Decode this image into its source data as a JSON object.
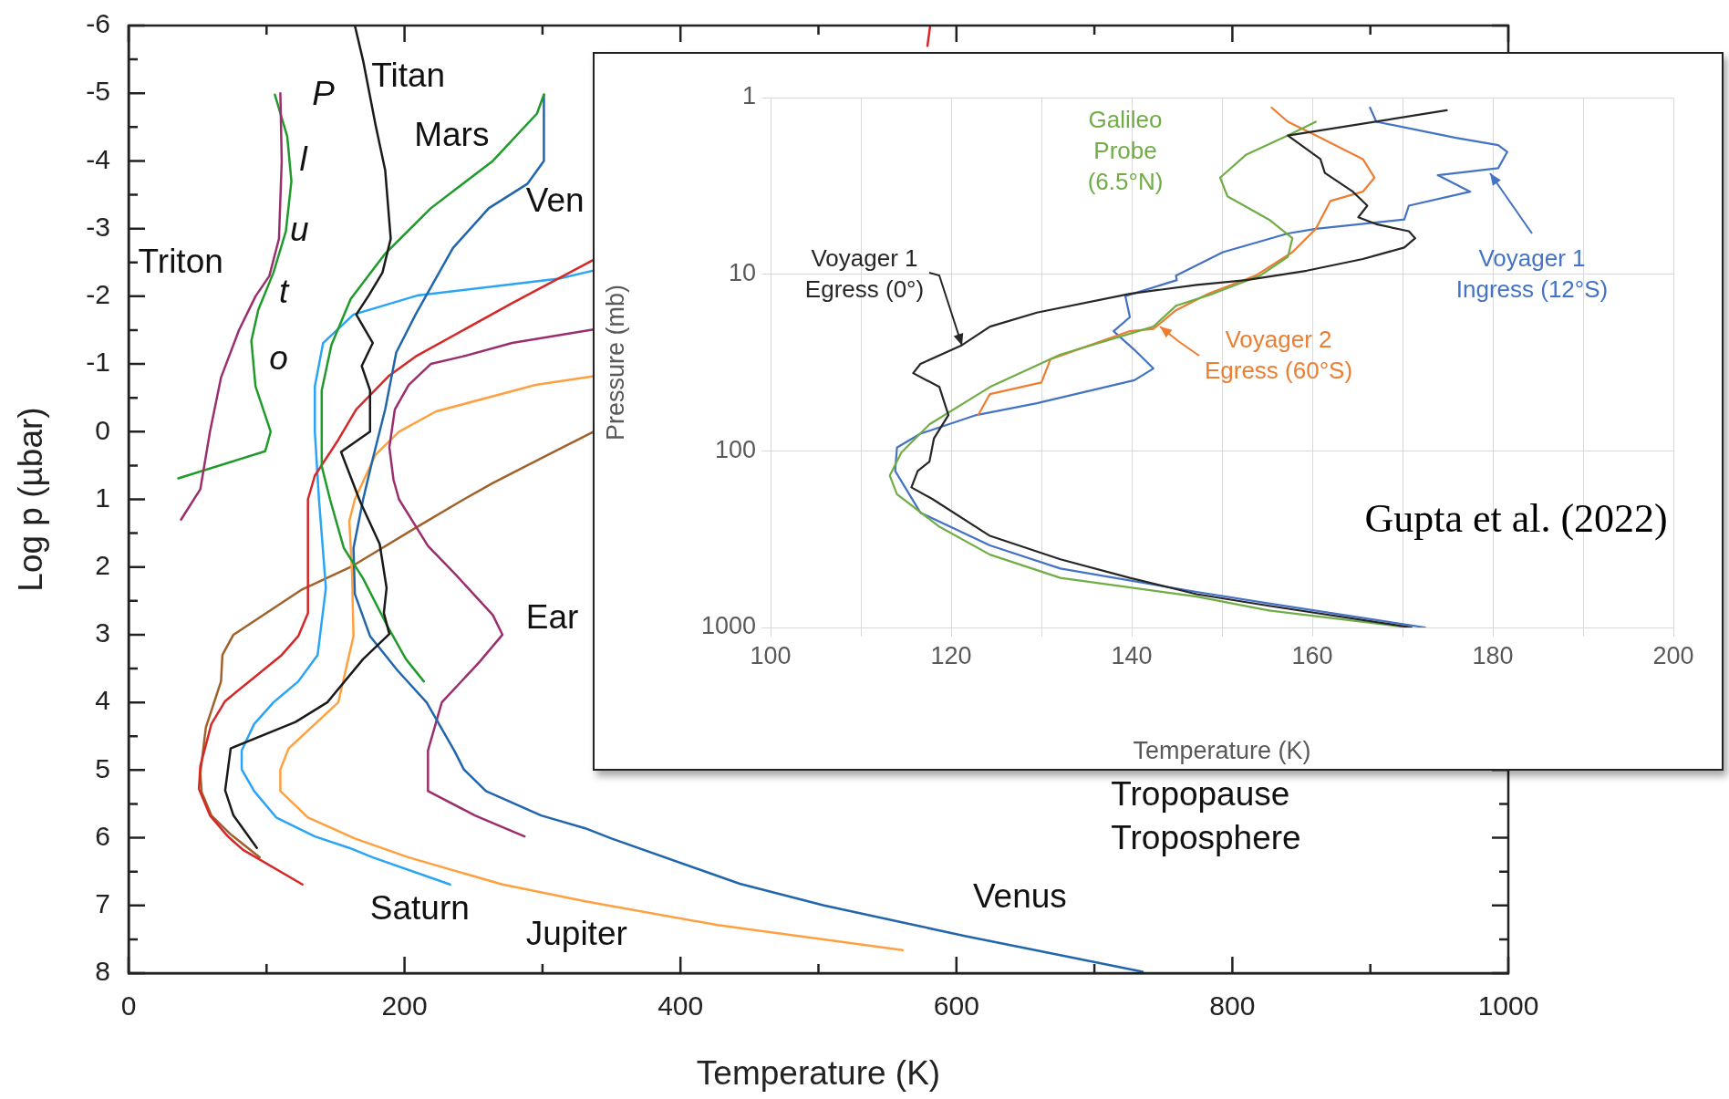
{
  "chart_data": [
    {
      "type": "line",
      "xlabel": "Temperature (K)",
      "ylabel": "Log p (µbar)",
      "xlim": [
        0,
        1000
      ],
      "ylim": [
        8,
        -6
      ],
      "xticks": [
        0,
        {
          "value": 100,
          "label": null
        },
        200,
        {
          "value": 300,
          "label": null
        },
        400,
        {
          "value": 500,
          "label": null
        },
        600,
        {
          "value": 700,
          "label": null
        },
        800,
        {
          "value": 900,
          "label": null
        },
        1000
      ],
      "yticks": [
        -6,
        {
          "value": -5.5,
          "label": null
        },
        -5,
        {
          "value": -4.5,
          "label": null
        },
        -4,
        {
          "value": -3.5,
          "label": null
        },
        -3,
        {
          "value": -2.5,
          "label": null
        },
        -2,
        {
          "value": -1.5,
          "label": null
        },
        -1,
        {
          "value": -0.5,
          "label": null
        },
        0,
        {
          "value": 0.5,
          "label": null
        },
        1,
        {
          "value": 1.5,
          "label": null
        },
        2,
        {
          "value": 2.5,
          "label": null
        },
        3,
        {
          "value": 3.5,
          "label": null
        },
        4,
        {
          "value": 4.5,
          "label": null
        },
        5,
        {
          "value": 5.5,
          "label": null
        },
        6,
        {
          "value": 6.5,
          "label": null
        },
        7,
        {
          "value": 7.5,
          "label": null
        },
        8
      ],
      "grid": false,
      "marker": "none",
      "line_style": "solid",
      "annotations": [
        "Titan",
        "Mars",
        "Ven",
        "Triton",
        "P",
        "l",
        "u",
        "t",
        "o",
        "Ear",
        "Saturn",
        "Jupiter",
        "Venus",
        "Tropopause",
        "Troposphere"
      ],
      "series": [
        {
          "color": "#9b2f6e",
          "x": [
            110,
            111,
            109,
            102,
            92,
            80,
            67,
            59,
            52,
            38
          ],
          "values": [
            -5,
            -4,
            -2.85,
            -2.3,
            -2,
            -1.5,
            -0.8,
            0,
            0.85,
            1.3
          ]
        },
        {
          "color": "#1f9a2b",
          "x": [
            106,
            115,
            118,
            114,
            105,
            94,
            89,
            92,
            103,
            99,
            36
          ],
          "values": [
            -4.98,
            -4.36,
            -3.7,
            -2.96,
            -2.35,
            -1.8,
            -1.34,
            -0.67,
            0,
            0.29,
            0.69
          ]
        },
        {
          "color": "#1a1a1a",
          "x": [
            164,
            170,
            179,
            186,
            190,
            184,
            174,
            165,
            177,
            169,
            175,
            175,
            154,
            168,
            182,
            187,
            185,
            189,
            170,
            144,
            121,
            74,
            70,
            76,
            93
          ],
          "values": [
            -6,
            -5.48,
            -4.53,
            -3.86,
            -2.85,
            -2.35,
            -2.01,
            -1.73,
            -1.31,
            -0.97,
            -0.61,
            0,
            0.3,
            1.04,
            1.66,
            2.31,
            2.68,
            2.99,
            3.36,
            4,
            4.29,
            4.68,
            5.3,
            5.67,
            6.15
          ]
        },
        {
          "color": "#1f9a2b",
          "x": [
            301,
            296,
            264,
            219,
            186,
            161,
            147,
            140,
            140,
            146,
            156,
            170,
            187,
            201,
            214
          ],
          "values": [
            -4.98,
            -4.7,
            -4,
            -3.3,
            -2.63,
            -1.96,
            -1.28,
            -0.61,
            0.51,
            1,
            1.72,
            2.17,
            2.85,
            3.36,
            3.69
          ]
        },
        {
          "color": "#2166ac",
          "x": [
            301,
            301,
            289,
            261,
            235,
            222,
            208,
            194,
            186,
            177,
            170,
            163,
            164,
            175,
            195,
            216,
            236,
            243,
            259,
            299,
            331,
            350,
            443,
            504,
            606,
            662,
            735
          ],
          "values": [
            -4.98,
            -4,
            -3.66,
            -3.3,
            -2.71,
            -2.24,
            -1.73,
            -1.17,
            -0.33,
            0.4,
            1,
            1.72,
            2.4,
            3.02,
            3.53,
            4,
            4.71,
            4.99,
            5.31,
            5.67,
            5.86,
            6.01,
            6.68,
            7,
            7.45,
            7.68,
            7.98
          ]
        },
        {
          "color": "#9b2f6e",
          "x": [
            337,
            278,
            242,
            219,
            203,
            193,
            189,
            192,
            196,
            217,
            237,
            264,
            271,
            254,
            227,
            217,
            217,
            251,
            287
          ],
          "values": [
            -1.51,
            -1.31,
            -1.11,
            -1,
            -0.69,
            -0.33,
            0.23,
            0.71,
            1,
            1.69,
            2.11,
            2.71,
            3,
            3.41,
            4,
            4.71,
            5.31,
            5.67,
            5.98
          ]
        },
        {
          "color": "#d62728",
          "x": [
            581,
            579,
            450,
            337,
            278,
            208,
            189,
            165,
            152,
            135,
            130,
            130,
            123,
            111,
            70,
            60,
            52,
            51,
            59,
            72,
            83,
            126
          ],
          "values": [
            -6,
            -5.7,
            null,
            -2.54,
            -1.9,
            -1.11,
            -0.83,
            -0.33,
            0.12,
            0.65,
            1,
            2.68,
            3.02,
            3.3,
            3.98,
            4.32,
            4.94,
            5.28,
            5.67,
            5.98,
            6.18,
            6.69
          ]
        },
        {
          "color": "#2aa4f4",
          "x": [
            337,
            312,
            209,
            163,
            141,
            135,
            135,
            138,
            143,
            137,
            123,
            105,
            91,
            82,
            82,
            91,
            107,
            135,
            160,
            177,
            233
          ],
          "values": [
            -2.38,
            -2.26,
            -2.01,
            -1.73,
            -1.31,
            -0.67,
            0,
            1,
            2.31,
            3.3,
            3.69,
            4,
            4.32,
            4.71,
            4.99,
            5.31,
            5.7,
            5.98,
            6.15,
            6.29,
            6.69
          ]
        },
        {
          "color": "#ffa040",
          "x": [
            337,
            295,
            223,
            196,
            179,
            164,
            160,
            162,
            163,
            152,
            116,
            110,
            110,
            130,
            164,
            203,
            271,
            331,
            427,
            561
          ],
          "values": [
            -0.82,
            -0.69,
            -0.3,
            0,
            0.34,
            1,
            1.32,
            2.11,
            3.02,
            4,
            4.68,
            4.99,
            5.31,
            5.7,
            6.01,
            6.29,
            6.69,
            6.94,
            7.29,
            7.66
          ]
        },
        {
          "color": "#a0622a",
          "x": [
            337,
            306,
            264,
            243,
            209,
            170,
            161,
            125,
            76,
            68,
            67,
            56,
            52,
            53,
            60,
            74,
            95
          ],
          "values": [
            0,
            0.32,
            0.76,
            1,
            1.41,
            1.89,
            2,
            2.34,
            3,
            3.3,
            3.69,
            4.37,
            5.05,
            5.33,
            5.67,
            5.95,
            6.29
          ]
        }
      ]
    },
    {
      "type": "line",
      "xlabel": "Temperature (K)",
      "ylabel": "Pressure (mb)",
      "xlim": [
        100,
        200
      ],
      "ylim": [
        1000,
        1
      ],
      "log": "y",
      "xticks": [
        100,
        {
          "value": 110,
          "label": null
        },
        120,
        {
          "value": 130,
          "label": null
        },
        140,
        {
          "value": 150,
          "label": null
        },
        160,
        {
          "value": 170,
          "label": null
        },
        180,
        {
          "value": 190,
          "label": null
        },
        200
      ],
      "yticks": [
        1,
        10,
        100,
        1000
      ],
      "grid": true,
      "marker": "none",
      "line_style": "solid",
      "annotations": [
        "Gupta et al. (2022)"
      ],
      "series": [
        {
          "name": "Voyager 1 Egress (0°)",
          "color": "#262626",
          "x": [
            174.9,
            157.3,
            160.9,
            161.4,
            164.5,
            166.1,
            165.1,
            167.1,
            170.7,
            171.4,
            170.2,
            165.6,
            159.4,
            152.7,
            147.2,
            139.8,
            129.5,
            124.3,
            121.2,
            116.6,
            115.8,
            118.7,
            119.7,
            118.1,
            117.6,
            116.3,
            115.6,
            117.9,
            124.3,
            132.1,
            139.8,
            147.2,
            155.2,
            171
          ],
          "values": [
            1.18,
            1.64,
            2.23,
            2.67,
            3.41,
            4.09,
            4.76,
            5.21,
            5.71,
            6.25,
            7.06,
            8.2,
            9.55,
            10.8,
            11.5,
            12.9,
            16.5,
            19.8,
            25.2,
            32.2,
            36.3,
            43.5,
            62.7,
            84.9,
            115,
            130,
            161,
            187,
            303,
            411,
            524,
            648,
            754,
            1000
          ]
        },
        {
          "name": "Galileo Probe (6.5°N)",
          "color": "#70ad47",
          "x": [
            160.4,
            157.3,
            152.7,
            149.8,
            150.6,
            155.2,
            157.8,
            157.3,
            154.2,
            149,
            144.9,
            142.4,
            132.1,
            124.3,
            117.6,
            114.5,
            113.2,
            114,
            118.7,
            124.3,
            132.1,
            147.2,
            155.2,
            170.7
          ],
          "values": [
            1.37,
            1.64,
            2.1,
            2.84,
            3.62,
            4.9,
            6.25,
            7.96,
            10.2,
            12.9,
            15.1,
            19.8,
            28.5,
            43.5,
            70.8,
            102,
            138,
            176,
            269,
            387,
            524,
            668,
            801,
            1000
          ]
        },
        {
          "name": "Voyager 2 Egress (60°S)",
          "color": "#ed7d31",
          "x": [
            155.5,
            157.3,
            160.4,
            165.6,
            166.9,
            165.6,
            162,
            160.4,
            157.8,
            153.7,
            148.5,
            144.9,
            142.4,
            139.8,
            131,
            130,
            124.3,
            123
          ],
          "values": [
            1.14,
            1.37,
            1.64,
            2.23,
            2.84,
            3.41,
            3.85,
            5.53,
            7.5,
            10.2,
            12.9,
            16,
            20.4,
            21,
            30.3,
            41,
            47.7,
            62.7
          ]
        },
        {
          "name": "Voyager 1 Ingress (12°S)",
          "color": "#4472c4",
          "x": [
            166.4,
            167.1,
            175.9,
            180.6,
            181.6,
            180.6,
            173.9,
            177.5,
            170.7,
            170.2,
            160.4,
            157.3,
            150.1,
            144.9,
            145,
            139.3,
            139.8,
            138,
            140.3,
            142.4,
            140.3,
            129.5,
            122.8,
            116.6,
            114,
            113.8,
            116.6,
            124.3,
            132.1,
            147.2,
            155.2,
            172.5
          ],
          "values": [
            1.14,
            1.37,
            1.69,
            1.86,
            2.03,
            2.51,
            2.75,
            3.41,
            4.09,
            4.9,
            5.53,
            5.88,
            7.5,
            10.2,
            10.8,
            13.3,
            17.5,
            21,
            26.8,
            34.2,
            39.8,
            53.8,
            62.7,
            80,
            95.9,
            130,
            224,
            343,
            464,
            629,
            731,
            1000
          ]
        }
      ]
    }
  ]
}
